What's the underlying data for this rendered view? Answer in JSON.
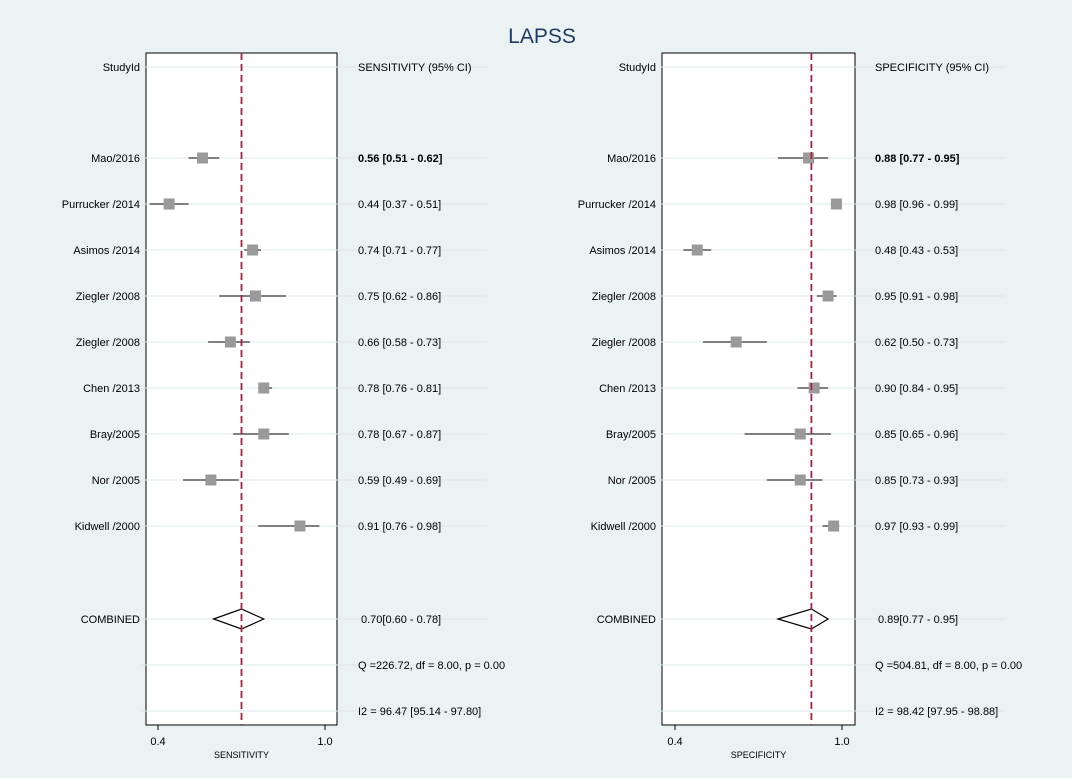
{
  "chart_data": {
    "type": "forest",
    "title": "LAPSS",
    "studies": [
      "Mao/2016",
      "Purrucker /2014",
      "Asimos /2014",
      "Ziegler /2008",
      "Ziegler /2008",
      "Chen /2013",
      "Bray/2005",
      "Nor /2005",
      "Kidwell /2000"
    ],
    "combined_label": "COMBINED",
    "panels": [
      {
        "name": "sensitivity",
        "studyid_header": "StudyId",
        "ci_header": "SENSITIVITY (95% CI)",
        "xlabel": "SENSITIVITY",
        "xlim": [
          0.4,
          1.0
        ],
        "xticks": [
          "0.4",
          "1.0"
        ],
        "reference_line": 0.7,
        "estimates": [
          {
            "est": 0.56,
            "lo": 0.51,
            "hi": 0.62,
            "text": "0.56 [0.51 - 0.62]"
          },
          {
            "est": 0.44,
            "lo": 0.37,
            "hi": 0.51,
            "text": "0.44 [0.37 - 0.51]"
          },
          {
            "est": 0.74,
            "lo": 0.71,
            "hi": 0.77,
            "text": "0.74 [0.71 - 0.77]"
          },
          {
            "est": 0.75,
            "lo": 0.62,
            "hi": 0.86,
            "text": "0.75 [0.62 - 0.86]"
          },
          {
            "est": 0.66,
            "lo": 0.58,
            "hi": 0.73,
            "text": "0.66 [0.58 - 0.73]"
          },
          {
            "est": 0.78,
            "lo": 0.76,
            "hi": 0.81,
            "text": "0.78 [0.76 - 0.81]"
          },
          {
            "est": 0.78,
            "lo": 0.67,
            "hi": 0.87,
            "text": "0.78 [0.67 - 0.87]"
          },
          {
            "est": 0.59,
            "lo": 0.49,
            "hi": 0.69,
            "text": "0.59 [0.49 - 0.69]"
          },
          {
            "est": 0.91,
            "lo": 0.76,
            "hi": 0.98,
            "text": "0.91 [0.76 - 0.98]"
          }
        ],
        "combined": {
          "est": 0.7,
          "lo": 0.6,
          "hi": 0.78,
          "text": "0.70[0.60 - 0.78]"
        },
        "q_text": "Q =226.72, df = 8.00, p =  0.00",
        "i2_text": "I2 = 96.47 [95.14 - 97.80]"
      },
      {
        "name": "specificity",
        "studyid_header": "StudyId",
        "ci_header": "SPECIFICITY (95% CI)",
        "xlabel": "SPECIFICITY",
        "xlim": [
          0.4,
          1.0
        ],
        "xticks": [
          "0.4",
          "1.0"
        ],
        "reference_line": 0.89,
        "estimates": [
          {
            "est": 0.88,
            "lo": 0.77,
            "hi": 0.95,
            "text": "0.88 [0.77 - 0.95]"
          },
          {
            "est": 0.98,
            "lo": 0.96,
            "hi": 0.99,
            "text": "0.98 [0.96 - 0.99]"
          },
          {
            "est": 0.48,
            "lo": 0.43,
            "hi": 0.53,
            "text": "0.48 [0.43 - 0.53]"
          },
          {
            "est": 0.95,
            "lo": 0.91,
            "hi": 0.98,
            "text": "0.95 [0.91 - 0.98]"
          },
          {
            "est": 0.62,
            "lo": 0.5,
            "hi": 0.73,
            "text": "0.62 [0.50 - 0.73]"
          },
          {
            "est": 0.9,
            "lo": 0.84,
            "hi": 0.95,
            "text": "0.90 [0.84 - 0.95]"
          },
          {
            "est": 0.85,
            "lo": 0.65,
            "hi": 0.96,
            "text": "0.85 [0.65 - 0.96]"
          },
          {
            "est": 0.85,
            "lo": 0.73,
            "hi": 0.93,
            "text": "0.85 [0.73 - 0.93]"
          },
          {
            "est": 0.97,
            "lo": 0.93,
            "hi": 0.99,
            "text": "0.97 [0.93 - 0.99]"
          }
        ],
        "combined": {
          "est": 0.89,
          "lo": 0.77,
          "hi": 0.95,
          "text": "0.89[0.77 - 0.95]"
        },
        "q_text": "Q =504.81, df = 8.00, p =  0.00",
        "i2_text": "I2 = 98.42 [97.95 - 98.88]"
      }
    ],
    "colors": {
      "background": "#eaf2f3",
      "plot_area": "#ffffff",
      "title": "#1f3a5f",
      "marker": "#9a9a9a",
      "reference_line": "#b01c3c",
      "text": "#000000"
    }
  }
}
